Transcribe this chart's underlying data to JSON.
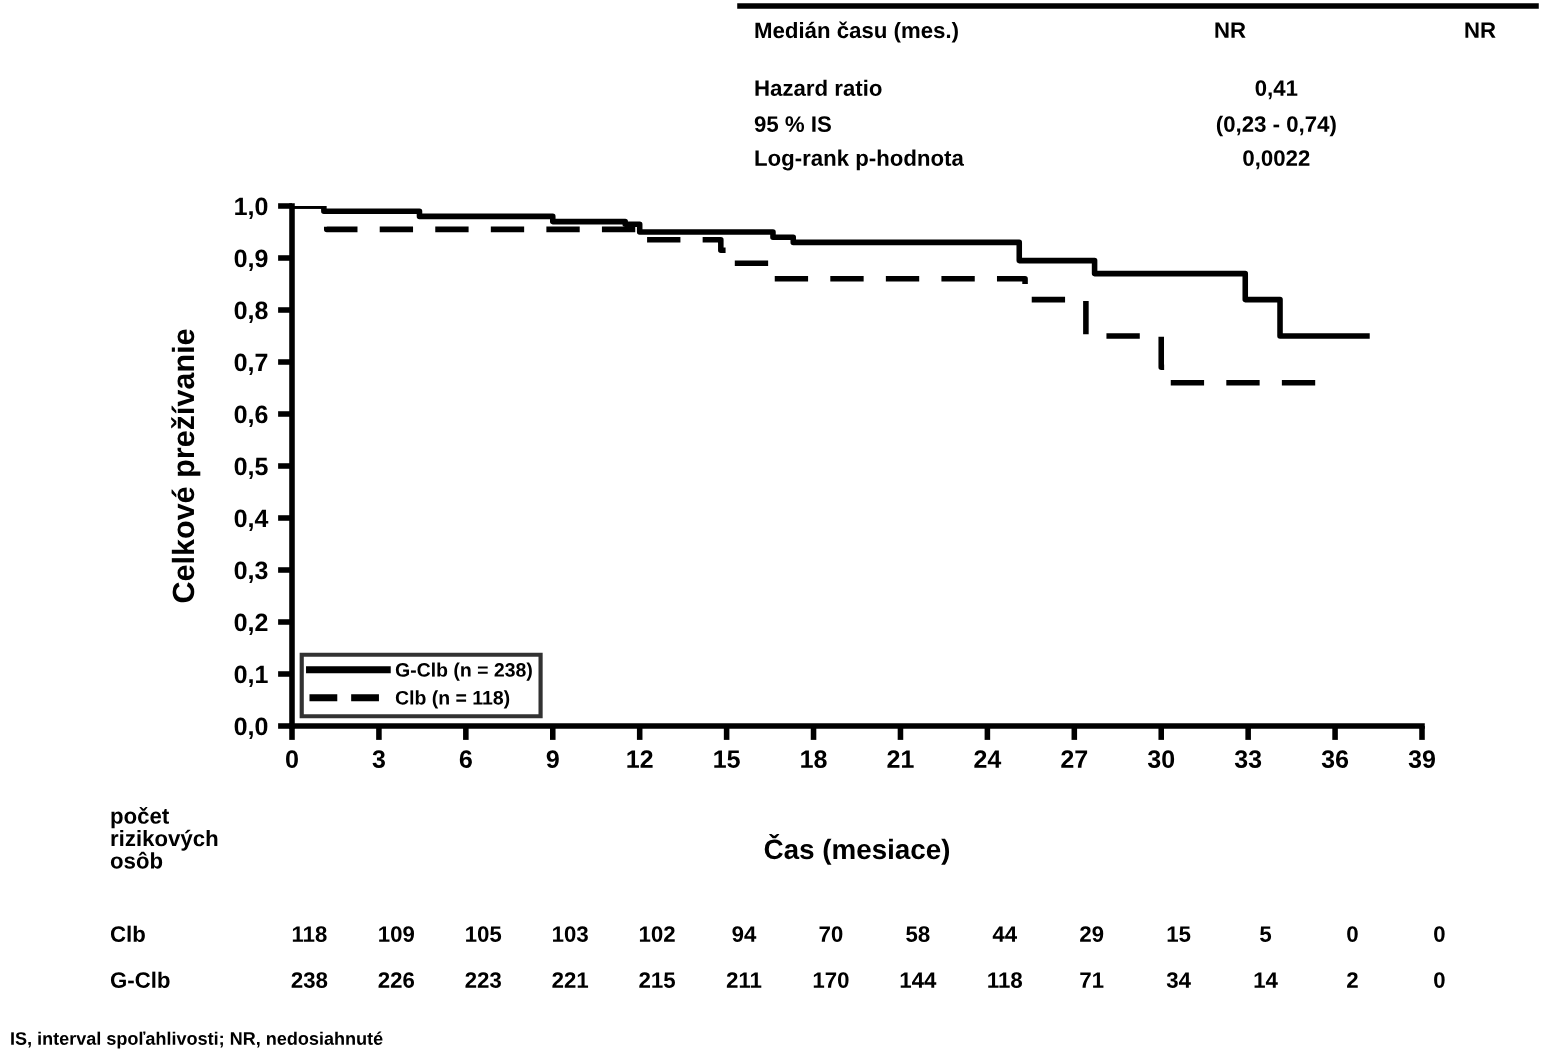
{
  "chart_data": {
    "type": "step",
    "xlabel": "Čas (mesiace)",
    "ylabel": "Celkové prežívanie",
    "xlim": [
      0,
      39
    ],
    "xticks": [
      0,
      3,
      6,
      9,
      12,
      15,
      18,
      21,
      24,
      27,
      30,
      33,
      36,
      39
    ],
    "ylim": [
      0,
      1.0
    ],
    "yticks": [
      {
        "value": 0,
        "label": "0,0"
      },
      {
        "value": 0.1,
        "label": "0,1"
      },
      {
        "value": 0.2,
        "label": "0,2"
      },
      {
        "value": 0.3,
        "label": "0,3"
      },
      {
        "value": 0.4,
        "label": "0,4"
      },
      {
        "value": 0.5,
        "label": "0,5"
      },
      {
        "value": 0.6,
        "label": "0,6"
      },
      {
        "value": 0.7,
        "label": "0,7"
      },
      {
        "value": 0.8,
        "label": "0,8"
      },
      {
        "value": 0.9,
        "label": "0,9"
      },
      {
        "value": 1.0,
        "label": "1,0"
      }
    ],
    "legend": "bottom left",
    "grid": false,
    "series": [
      {
        "name": "G-Clb (n = 238)",
        "color": "#000000",
        "line_style": "solid",
        "x": [
          0,
          1.1,
          4.4,
          9,
          11.5,
          12,
          16.6,
          17.3,
          25.1,
          27.7,
          32.9,
          34.1,
          37.1
        ],
        "values": [
          1.0,
          0.99,
          0.98,
          0.97,
          0.965,
          0.95,
          0.94,
          0.93,
          0.895,
          0.87,
          0.82,
          0.75,
          0.75
        ]
      },
      {
        "name": "Clb (n = 118)",
        "color": "#000000",
        "line_style": "dashed",
        "x": [
          0,
          1.2,
          12.2,
          14.8,
          15.2,
          16.5,
          25.3,
          27.4,
          30,
          30.3,
          35.5
        ],
        "values": [
          1.0,
          0.955,
          0.935,
          0.915,
          0.89,
          0.86,
          0.82,
          0.75,
          0.69,
          0.66,
          0.66
        ]
      }
    ],
    "annotations": [
      "Medián času (mes.)",
      "NR",
      "NR",
      "Hazard ratio",
      "0,41",
      "95 % IS",
      "(0,23 - 0,74)",
      "Log-rank p-hodnota",
      "0,0022",
      "počet\nrizikových\nosôb",
      "Clb",
      "118",
      "109",
      "105",
      "103",
      "102",
      "94",
      "70",
      "58",
      "44",
      "29",
      "15",
      "5",
      "0",
      "0",
      "G-Clb",
      "238",
      "226",
      "223",
      "221",
      "215",
      "211",
      "170",
      "144",
      "118",
      "71",
      "34",
      "14",
      "2",
      "0",
      "IS, interval spoľahlivosti; NR, nedosiahnuté"
    ]
  }
}
